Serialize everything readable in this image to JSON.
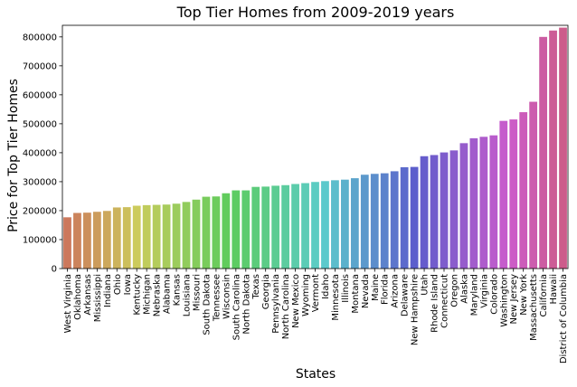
{
  "chart_data": {
    "type": "bar",
    "title": "Top Tier Homes from 2009-2019 years",
    "xlabel": "States",
    "ylabel": "Price for Top Tier Homes",
    "ylim": [
      0,
      840000
    ],
    "yticks": [
      0,
      100000,
      200000,
      300000,
      400000,
      500000,
      600000,
      700000,
      800000
    ],
    "ytick_labels": [
      "0",
      "100000",
      "200000",
      "300000",
      "400000",
      "500000",
      "600000",
      "700000",
      "800000"
    ],
    "grid": false,
    "legend": "none",
    "categories": [
      "West Virginia",
      "Oklahoma",
      "Arkansas",
      "Mississippi",
      "Indiana",
      "Ohio",
      "Iowa",
      "Kentucky",
      "Michigan",
      "Nebraska",
      "Alabama",
      "Kansas",
      "Louisiana",
      "Missouri",
      "South Dakota",
      "Tennessee",
      "Wisconsin",
      "South Carolina",
      "North Dakota",
      "Texas",
      "Georgia",
      "Pennsylvania",
      "North Carolina",
      "New Mexico",
      "Wyoming",
      "Vermont",
      "Idaho",
      "Minnesota",
      "Illinois",
      "Montana",
      "Nevada",
      "Maine",
      "Florida",
      "Arizona",
      "Delaware",
      "New Hampshire",
      "Utah",
      "Rhode Island",
      "Connecticut",
      "Oregon",
      "Alaska",
      "Maryland",
      "Virginia",
      "Colorado",
      "Washington",
      "New Jersey",
      "New York",
      "Massachusetts",
      "California",
      "Hawaii",
      "District of Columbia"
    ],
    "values": [
      177000,
      192000,
      193000,
      196000,
      199000,
      211000,
      212000,
      217000,
      219000,
      220000,
      221000,
      224000,
      230000,
      238000,
      248000,
      249000,
      260000,
      270000,
      270000,
      282000,
      283000,
      286000,
      288000,
      292000,
      295000,
      299000,
      302000,
      305000,
      307000,
      312000,
      324000,
      327000,
      329000,
      336000,
      350000,
      351000,
      388000,
      392000,
      401000,
      408000,
      433000,
      450000,
      455000,
      460000,
      510000,
      515000,
      540000,
      576000,
      800000,
      822000,
      832000
    ]
  }
}
